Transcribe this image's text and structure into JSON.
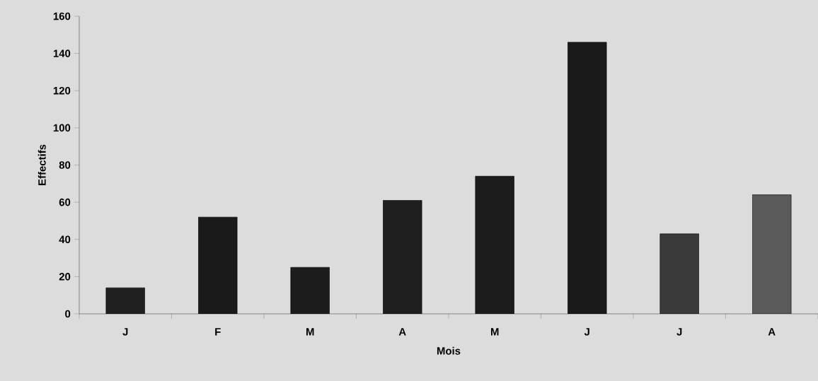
{
  "chart_data": {
    "type": "bar",
    "xlabel": "Mois",
    "ylabel": "Effectifs",
    "categories": [
      "J",
      "F",
      "M",
      "A",
      "M",
      "J",
      "J",
      "A"
    ],
    "values": [
      14,
      52,
      25,
      61,
      74,
      146,
      43,
      64
    ],
    "colors": [
      "#202020",
      "#1a1a1a",
      "#1c1c1c",
      "#1e1e1e",
      "#1c1c1c",
      "#1a1a1a",
      "#3a3a3a",
      "#5a5a5a"
    ],
    "ylim": [
      0,
      160
    ],
    "yticks": [
      0,
      20,
      40,
      60,
      80,
      100,
      120,
      140,
      160
    ],
    "grid": false
  }
}
